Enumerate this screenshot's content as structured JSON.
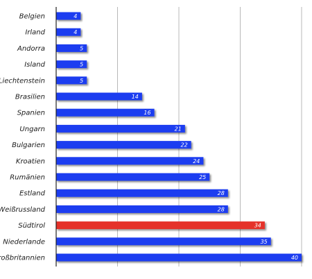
{
  "chart_data": {
    "type": "bar",
    "orientation": "horizontal",
    "categories": [
      "Belgien",
      "Irland",
      "Andorra",
      "Island",
      "Liechtenstein",
      "Brasilien",
      "Spanien",
      "Ungarn",
      "Bulgarien",
      "Kroatien",
      "Rumänien",
      "Estland",
      "Weißrussland",
      "Südtirol",
      "Niederlande",
      "Großbritannien"
    ],
    "values": [
      4,
      4,
      5,
      5,
      5,
      14,
      16,
      21,
      22,
      24,
      25,
      28,
      28,
      34,
      35,
      40
    ],
    "highlight_category": "Südtirol",
    "colors": {
      "bar": "#1f3cf0",
      "highlight": "#e5322b",
      "grid": "#b8b8b8",
      "axis": "#222222"
    },
    "xlim": [
      0,
      40
    ],
    "title": "",
    "xlabel": "",
    "ylabel": "",
    "grid": true,
    "legend": "none"
  }
}
